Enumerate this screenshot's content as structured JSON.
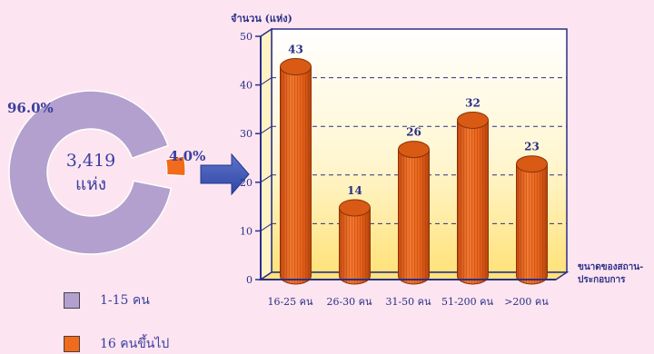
{
  "donut": {
    "center_value": "3,419",
    "center_unit": "แห่ง",
    "slices": [
      {
        "label": "96.0%",
        "value": 96.0,
        "color": "#B3A0CE"
      },
      {
        "label": "4.0%",
        "value": 4.0,
        "color": "#F26A1B"
      }
    ]
  },
  "legend": [
    {
      "label": "1-15 คน",
      "color": "#B3A0CE"
    },
    {
      "label": "16 คนขึ้นไป",
      "color": "#F26A1B"
    }
  ],
  "chart_data": {
    "type": "bar",
    "ylabel": "จำนวน (แห่ง)",
    "xlabel": "ขนาดของสถาน-ประกอบการ",
    "xlabel_lines": [
      "ขนาดของสถาน-",
      "ประกอบการ"
    ],
    "categories": [
      "16-25 คน",
      "26-30 คน",
      "31-50 คน",
      "51-200 คน",
      ">200 คน"
    ],
    "values": [
      43,
      14,
      26,
      32,
      23
    ],
    "data_labels": [
      "43",
      "14",
      "26",
      "32",
      "23"
    ],
    "ylim": [
      0,
      50
    ],
    "yticks": [
      0,
      10,
      20,
      30,
      40,
      50
    ],
    "ytick_labels": [
      "0",
      "10",
      "20",
      "30",
      "40",
      "50"
    ],
    "grid": true,
    "bar_color": "#F26A1B"
  }
}
